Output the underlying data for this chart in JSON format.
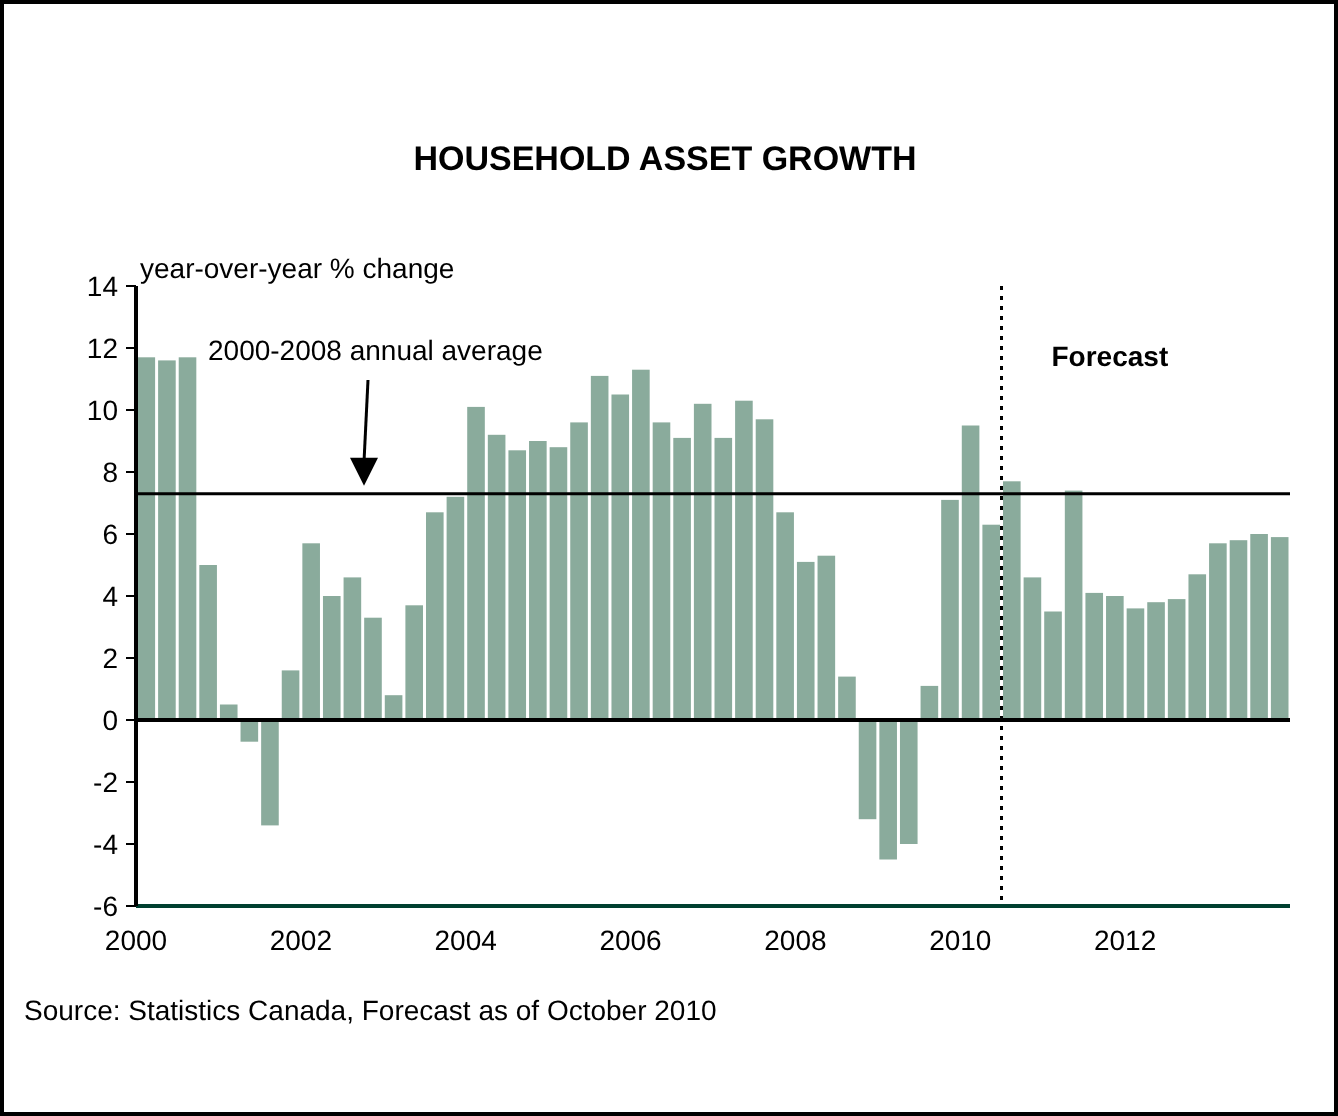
{
  "chart_data": {
    "type": "bar",
    "title": "HOUSEHOLD ASSET GROWTH",
    "ylabel": "year-over-year % change",
    "x": [
      2000.125,
      2000.375,
      2000.625,
      2000.875,
      2001.125,
      2001.375,
      2001.625,
      2001.875,
      2002.125,
      2002.375,
      2002.625,
      2002.875,
      2003.125,
      2003.375,
      2003.625,
      2003.875,
      2004.125,
      2004.375,
      2004.625,
      2004.875,
      2005.125,
      2005.375,
      2005.625,
      2005.875,
      2006.125,
      2006.375,
      2006.625,
      2006.875,
      2007.125,
      2007.375,
      2007.625,
      2007.875,
      2008.125,
      2008.375,
      2008.625,
      2008.875,
      2009.125,
      2009.375,
      2009.625,
      2009.875,
      2010.125,
      2010.375,
      2010.625,
      2010.875,
      2011.125,
      2011.375,
      2011.625,
      2011.875,
      2012.125,
      2012.375,
      2012.625,
      2012.875,
      2013.125,
      2013.375,
      2013.625,
      2013.875
    ],
    "values": [
      11.7,
      11.6,
      11.7,
      5.0,
      0.5,
      -0.7,
      -3.4,
      1.6,
      5.7,
      4.0,
      4.6,
      3.3,
      0.8,
      3.7,
      6.7,
      7.2,
      10.1,
      9.2,
      8.7,
      9.0,
      8.8,
      9.6,
      11.1,
      10.5,
      11.3,
      9.6,
      9.1,
      10.2,
      9.1,
      10.3,
      9.7,
      6.7,
      5.1,
      5.3,
      1.4,
      -3.2,
      -4.5,
      -4.0,
      1.1,
      7.1,
      9.5,
      6.3,
      7.7,
      4.6,
      3.5,
      7.4,
      4.1,
      4.0,
      3.6,
      3.8,
      3.9,
      4.7,
      5.7,
      5.8,
      6.0,
      5.9
    ],
    "color": "#8aab9c",
    "xlim": [
      2000,
      2014
    ],
    "xticks": [
      2000,
      2002,
      2004,
      2006,
      2008,
      2010,
      2012
    ],
    "ylim": [
      -6,
      14
    ],
    "yticks": [
      -6,
      -4,
      -2,
      0,
      2,
      4,
      6,
      8,
      10,
      12,
      14
    ],
    "ref_lines": [
      {
        "axis": "y",
        "value": 7.3,
        "color": "#000000",
        "line_style": "solid"
      },
      {
        "axis": "x",
        "value": 2010.5,
        "color": "#000000",
        "line_style": "dotted"
      }
    ],
    "annotations": [
      "2000-2008 annual average",
      "Forecast",
      "Source: Statistics Canada, Forecast as of October 2010"
    ]
  }
}
